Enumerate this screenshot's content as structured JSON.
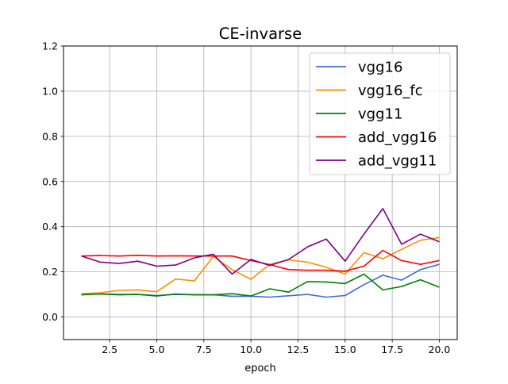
{
  "chart_data": {
    "type": "line",
    "title": "CE-invarse",
    "xlabel": "epoch",
    "ylabel": "",
    "xlim": [
      0.05,
      20.95
    ],
    "ylim": [
      -0.1,
      1.2
    ],
    "xticks": [
      2.5,
      5.0,
      7.5,
      10.0,
      12.5,
      15.0,
      17.5,
      20.0
    ],
    "xtick_labels": [
      "2.5",
      "5.0",
      "7.5",
      "10.0",
      "12.5",
      "15.0",
      "17.5",
      "20.0"
    ],
    "yticks": [
      0.0,
      0.2,
      0.4,
      0.6,
      0.8,
      1.0,
      1.2
    ],
    "ytick_labels": [
      "0.0",
      "0.2",
      "0.4",
      "0.6",
      "0.8",
      "1.0",
      "1.2"
    ],
    "grid": true,
    "legend_position": "top-right",
    "x": [
      1,
      2,
      3,
      4,
      5,
      6,
      7,
      8,
      9,
      10,
      11,
      12,
      13,
      14,
      15,
      16,
      17,
      18,
      19,
      20
    ],
    "series": [
      {
        "name": "vgg16",
        "color": "#4169e1",
        "values": [
          0.1,
          0.102,
          0.1,
          0.1,
          0.095,
          0.1,
          0.098,
          0.098,
          0.092,
          0.092,
          0.088,
          0.094,
          0.1,
          0.088,
          0.095,
          0.143,
          0.185,
          0.163,
          0.21,
          0.233
        ]
      },
      {
        "name": "vgg16_fc",
        "color": "#ff8c00",
        "values": [
          0.103,
          0.107,
          0.118,
          0.12,
          0.112,
          0.168,
          0.16,
          0.268,
          0.21,
          0.167,
          0.233,
          0.253,
          0.243,
          0.22,
          0.19,
          0.285,
          0.258,
          0.3,
          0.34,
          0.352
        ]
      },
      {
        "name": "vgg11",
        "color": "#008000",
        "values": [
          0.098,
          0.102,
          0.098,
          0.1,
          0.093,
          0.102,
          0.098,
          0.098,
          0.103,
          0.093,
          0.125,
          0.11,
          0.157,
          0.155,
          0.148,
          0.19,
          0.12,
          0.135,
          0.165,
          0.132
        ]
      },
      {
        "name": "add_vgg16",
        "color": "#ff0000",
        "values": [
          0.27,
          0.272,
          0.27,
          0.273,
          0.27,
          0.271,
          0.27,
          0.27,
          0.27,
          0.25,
          0.232,
          0.21,
          0.207,
          0.207,
          0.203,
          0.225,
          0.295,
          0.25,
          0.233,
          0.25
        ]
      },
      {
        "name": "add_vgg11",
        "color": "#800080",
        "values": [
          0.27,
          0.243,
          0.237,
          0.247,
          0.225,
          0.23,
          0.262,
          0.278,
          0.19,
          0.255,
          0.228,
          0.255,
          0.31,
          0.345,
          0.247,
          0.367,
          0.48,
          0.322,
          0.367,
          0.333
        ]
      }
    ]
  }
}
